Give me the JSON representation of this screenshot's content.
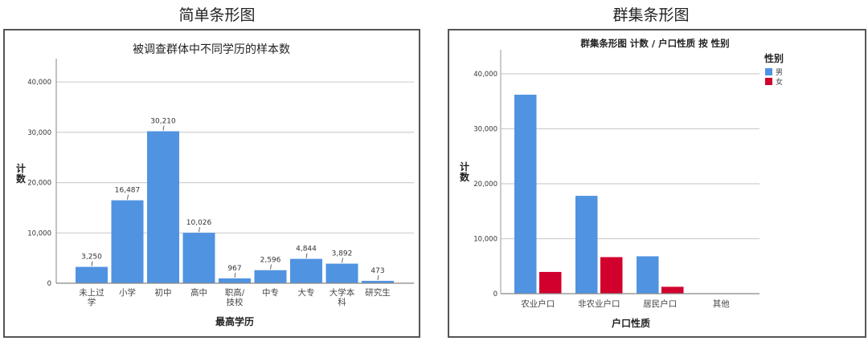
{
  "captions": {
    "left": "简单条形图",
    "right": "群集条形图"
  },
  "chart_data": [
    {
      "type": "bar",
      "title": "被调查群体中不同学历的样本数",
      "xlabel": "最高学历",
      "ylabel": "计数",
      "categories": [
        "未上过学",
        "小学",
        "初中",
        "高中",
        "职高/技校",
        "中专",
        "大专",
        "大学本科",
        "研究生"
      ],
      "category_lines": [
        [
          "未上过",
          "学"
        ],
        [
          "小学"
        ],
        [
          "初中"
        ],
        [
          "高中"
        ],
        [
          "职高/",
          "技校"
        ],
        [
          "中专"
        ],
        [
          "大专"
        ],
        [
          "大学本",
          "科"
        ],
        [
          "研究生"
        ]
      ],
      "values": [
        3250,
        16487,
        30210,
        10026,
        967,
        2596,
        4844,
        3892,
        473
      ],
      "value_labels": [
        "3,250",
        "16,487",
        "30,210",
        "10,026",
        "967",
        "2,596",
        "4,844",
        "3,892",
        "473"
      ],
      "yticks": [
        0,
        10000,
        20000,
        30000,
        40000
      ],
      "ytick_labels": [
        "0",
        "10,000",
        "20,000",
        "30,000",
        "40,000"
      ],
      "ylim": [
        0,
        45000
      ],
      "grid": true,
      "bar_color": "#5093e1"
    },
    {
      "type": "bar",
      "title": "群集条形图 计数 / 户口性质 按 性别",
      "xlabel": "户口性质",
      "ylabel": "计数",
      "categories": [
        "农业户口",
        "非农业户口",
        "居民户口",
        "其他"
      ],
      "series": [
        {
          "name": "男",
          "color": "#5093e1",
          "values": [
            36200,
            17800,
            6800,
            0
          ]
        },
        {
          "name": "女",
          "color": "#d1002d",
          "values": [
            3950,
            6650,
            1250,
            0
          ]
        }
      ],
      "legend": {
        "title": "性别",
        "position": "top-right"
      },
      "yticks": [
        0,
        10000,
        20000,
        30000,
        40000
      ],
      "ytick_labels": [
        "0",
        "10,000",
        "20,000",
        "30,000",
        "40,000"
      ],
      "ylim": [
        0,
        44000
      ],
      "grid": true
    }
  ]
}
